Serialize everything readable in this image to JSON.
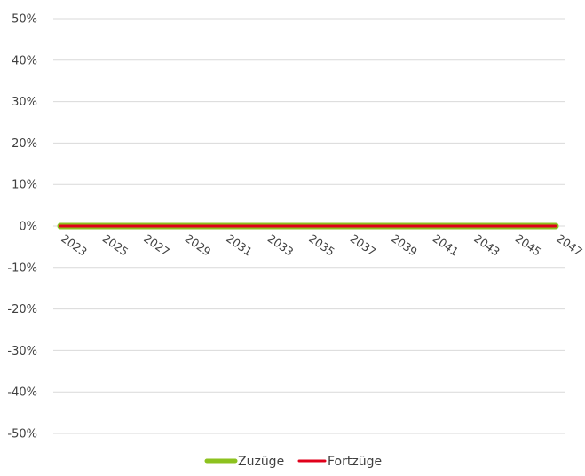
{
  "chart_data": {
    "type": "line",
    "title": "",
    "xlabel": "",
    "ylabel": "",
    "x": [
      "2023",
      "2024",
      "2025",
      "2026",
      "2027",
      "2028",
      "2029",
      "2030",
      "2031",
      "2032",
      "2033",
      "2034",
      "2035",
      "2036",
      "2037",
      "2038",
      "2039",
      "2040",
      "2041",
      "2042",
      "2043",
      "2044",
      "2045",
      "2046",
      "2047"
    ],
    "x_tick_labels": [
      "2023",
      "2025",
      "2027",
      "2029",
      "2031",
      "2033",
      "2035",
      "2037",
      "2039",
      "2041",
      "2043",
      "2045",
      "2047"
    ],
    "y_tick_labels": [
      "50%",
      "40%",
      "30%",
      "20%",
      "10%",
      "0%",
      "-10%",
      "-20%",
      "-30%",
      "-40%",
      "-50%"
    ],
    "ylim": [
      -0.5,
      0.5
    ],
    "grid": true,
    "legend_position": "bottom",
    "series": [
      {
        "name": "Zuzüge",
        "color": "#8DC21F",
        "values": [
          0,
          0,
          0,
          0,
          0,
          0,
          0,
          0,
          0,
          0,
          0,
          0,
          0,
          0,
          0,
          0,
          0,
          0,
          0,
          0,
          0,
          0,
          0,
          0,
          0
        ]
      },
      {
        "name": "Fortzüge",
        "color": "#E0001B",
        "values": [
          0,
          0,
          0,
          0,
          0,
          0,
          0,
          0,
          0,
          0,
          0,
          0,
          0,
          0,
          0,
          0,
          0,
          0,
          0,
          0,
          0,
          0,
          0,
          0,
          0
        ]
      }
    ]
  }
}
